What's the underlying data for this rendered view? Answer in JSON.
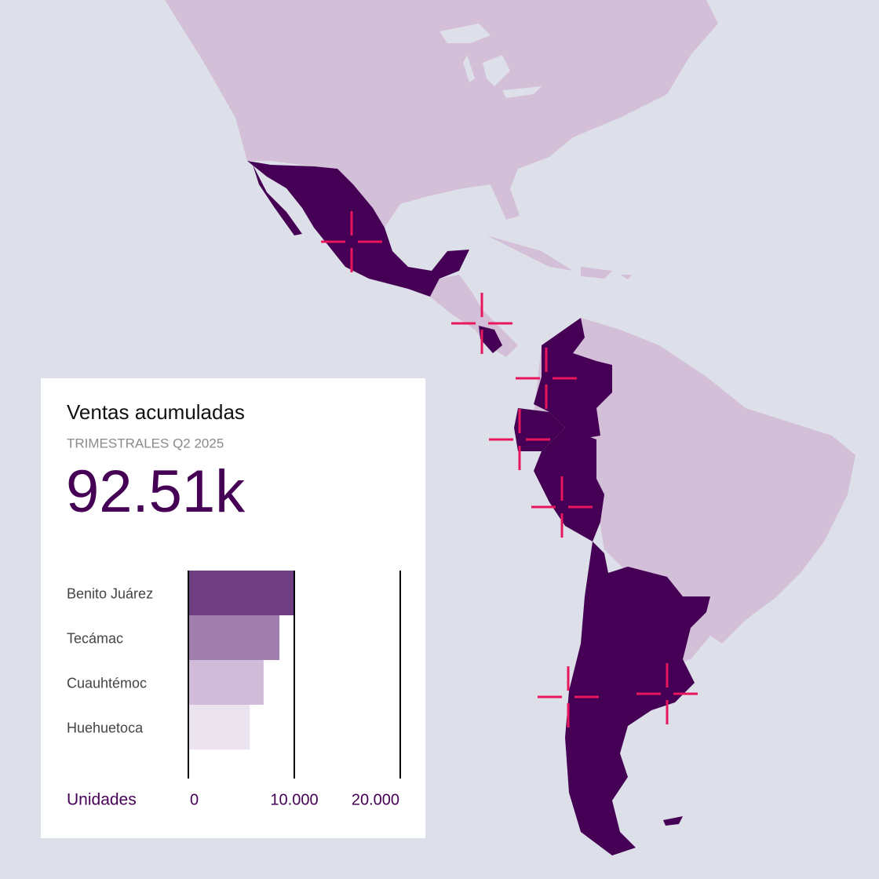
{
  "chart_data": {
    "type": "bar",
    "orientation": "horizontal",
    "title": "Ventas acumuladas",
    "subtitle": "TRIMESTRALES Q2 2025",
    "kpi": "92.51k",
    "categories": [
      "Benito Juárez",
      "Tecámac",
      "Cuauhtémoc",
      "Huehuetoca"
    ],
    "values": [
      10000,
      8600,
      7100,
      5800
    ],
    "colors": [
      "#6e3d82",
      "#a07fae",
      "#d0bcd8",
      "#ebe3ee"
    ],
    "xlabel": "Unidades",
    "xlim": [
      0,
      20000
    ],
    "xticks": [
      0,
      {
        "value": 10000,
        "label": "10.000"
      },
      {
        "value": 20000,
        "label": "20.000"
      }
    ],
    "grid": true
  }
}
